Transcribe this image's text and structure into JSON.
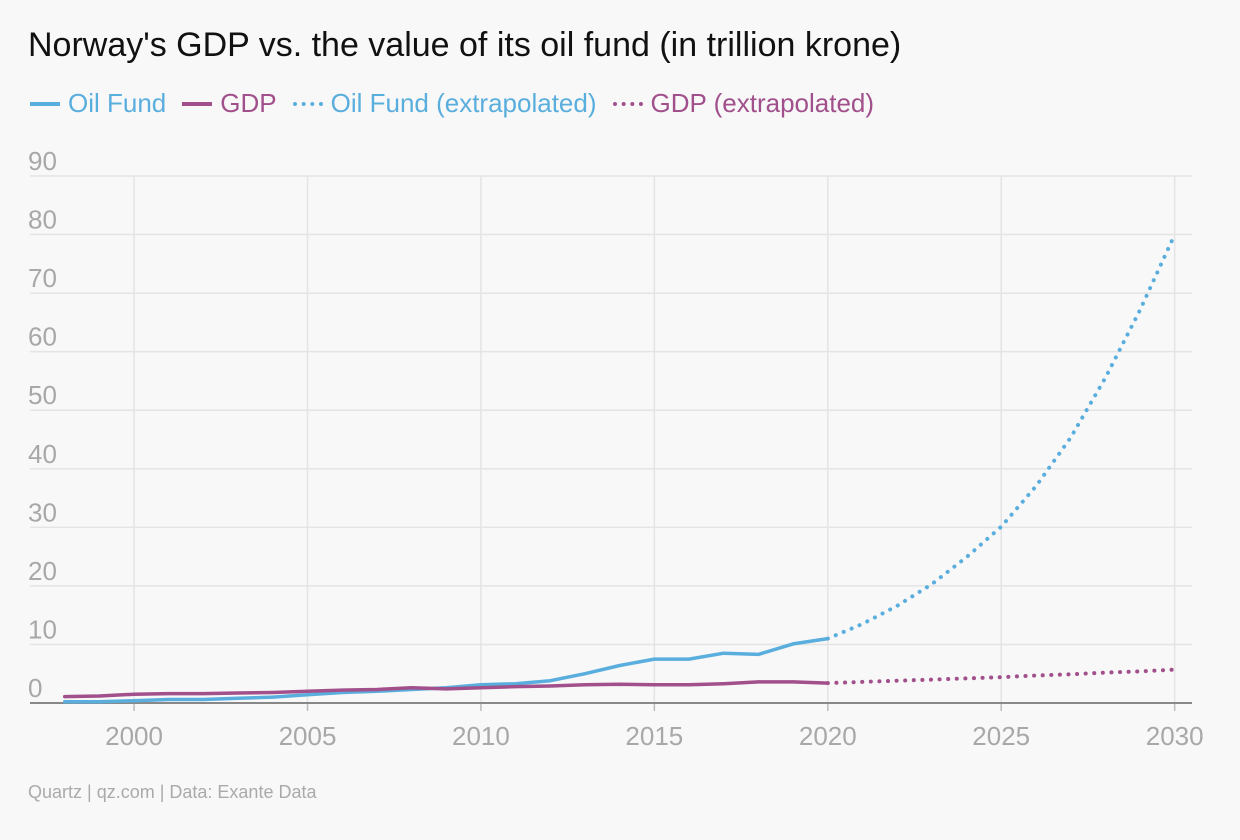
{
  "title": "Norway's GDP vs. the value of its oil fund (in trillion krone)",
  "footer": "Quartz | qz.com | Data: Exante Data",
  "legend": [
    {
      "label": "Oil Fund",
      "color": "#5aaedd",
      "style": "solid"
    },
    {
      "label": "GDP",
      "color": "#a1508c",
      "style": "solid"
    },
    {
      "label": "Oil Fund (extrapolated)",
      "color": "#5aaedd",
      "style": "dotted"
    },
    {
      "label": "GDP (extrapolated)",
      "color": "#a1508c",
      "style": "dotted"
    }
  ],
  "chart_data": {
    "type": "line",
    "title": "Norway's GDP vs. the value of its oil fund (in trillion krone)",
    "xlabel": "",
    "ylabel": "",
    "xlim": [
      1997,
      2030.5
    ],
    "ylim": [
      0,
      90
    ],
    "x_ticks": [
      2000,
      2005,
      2010,
      2015,
      2020,
      2025,
      2030
    ],
    "y_ticks": [
      0,
      10,
      20,
      30,
      40,
      50,
      60,
      70,
      80,
      90
    ],
    "grid": true,
    "legend_position": "top-left",
    "series": [
      {
        "name": "Oil Fund",
        "color": "#5aaedd",
        "style": "solid",
        "x": [
          1998,
          1999,
          2000,
          2001,
          2002,
          2003,
          2004,
          2005,
          2006,
          2007,
          2008,
          2009,
          2010,
          2011,
          2012,
          2013,
          2014,
          2015,
          2016,
          2017,
          2018,
          2019,
          2020
        ],
        "y": [
          0.2,
          0.2,
          0.4,
          0.6,
          0.6,
          0.8,
          1.0,
          1.4,
          1.8,
          2.0,
          2.3,
          2.6,
          3.1,
          3.3,
          3.8,
          5.0,
          6.4,
          7.5,
          7.5,
          8.5,
          8.3,
          10.1,
          11.0
        ]
      },
      {
        "name": "GDP",
        "color": "#a1508c",
        "style": "solid",
        "x": [
          1998,
          1999,
          2000,
          2001,
          2002,
          2003,
          2004,
          2005,
          2006,
          2007,
          2008,
          2009,
          2010,
          2011,
          2012,
          2013,
          2014,
          2015,
          2016,
          2017,
          2018,
          2019,
          2020
        ],
        "y": [
          1.1,
          1.2,
          1.5,
          1.6,
          1.6,
          1.7,
          1.8,
          2.0,
          2.2,
          2.3,
          2.6,
          2.4,
          2.6,
          2.8,
          2.9,
          3.1,
          3.2,
          3.1,
          3.1,
          3.3,
          3.6,
          3.6,
          3.4
        ]
      },
      {
        "name": "Oil Fund (extrapolated)",
        "color": "#5aaedd",
        "style": "dotted",
        "x": [
          2020,
          2021,
          2022,
          2023,
          2024,
          2025,
          2026,
          2027,
          2028,
          2029,
          2030
        ],
        "y": [
          11.0,
          13.5,
          16.6,
          20.3,
          24.9,
          30.1,
          37.0,
          45.3,
          55.5,
          67.1,
          80.0
        ]
      },
      {
        "name": "GDP (extrapolated)",
        "color": "#a1508c",
        "style": "dotted",
        "x": [
          2020,
          2021,
          2022,
          2023,
          2024,
          2025,
          2026,
          2027,
          2028,
          2029,
          2030
        ],
        "y": [
          3.4,
          3.6,
          3.8,
          4.0,
          4.2,
          4.4,
          4.7,
          4.9,
          5.2,
          5.4,
          5.7
        ]
      }
    ]
  }
}
